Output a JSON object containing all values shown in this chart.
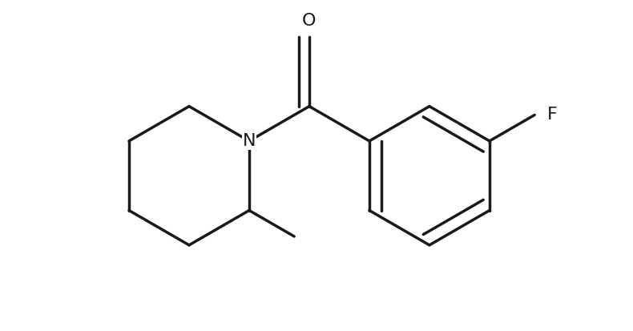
{
  "bg_color": "#ffffff",
  "line_color": "#1a1a1a",
  "line_width": 2.5,
  "font_size_atom": 16,
  "figsize": [
    7.9,
    4.13
  ],
  "dpi": 100,
  "xlim": [
    -1.05,
    1.55
  ],
  "ylim": [
    -0.85,
    0.75
  ]
}
